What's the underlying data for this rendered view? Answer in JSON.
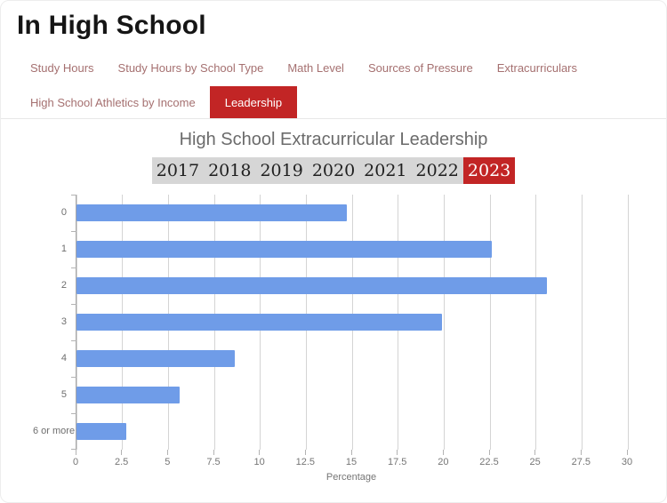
{
  "header": {
    "title": "In High School"
  },
  "tabs": {
    "row1": [
      {
        "label": "Study Hours"
      },
      {
        "label": "Study Hours by School Type"
      },
      {
        "label": "Math Level"
      },
      {
        "label": "Sources of Pressure"
      },
      {
        "label": "Extracurriculars"
      }
    ],
    "row2": [
      {
        "label": "High School Athletics by Income"
      },
      {
        "label": "Leadership",
        "active": true
      }
    ]
  },
  "chart": {
    "title": "High School Extracurricular Leadership",
    "years": [
      {
        "label": "2017",
        "active": false
      },
      {
        "label": "2018",
        "active": false
      },
      {
        "label": "2019",
        "active": false
      },
      {
        "label": "2020",
        "active": false
      },
      {
        "label": "2021",
        "active": false
      },
      {
        "label": "2022",
        "active": false
      },
      {
        "label": "2023",
        "active": true
      }
    ]
  },
  "chart_data": {
    "type": "bar",
    "orientation": "horizontal",
    "title": "High School Extracurricular Leadership",
    "categories": [
      "0",
      "1",
      "2",
      "3",
      "4",
      "5",
      "6 or more"
    ],
    "values": [
      14.7,
      22.6,
      25.6,
      19.9,
      8.6,
      5.6,
      2.7
    ],
    "xlabel": "Percentage",
    "ylabel": "",
    "xlim": [
      0,
      30
    ],
    "xticks": [
      0,
      2.5,
      5,
      7.5,
      10,
      12.5,
      15,
      17.5,
      20,
      22.5,
      25,
      27.5,
      30
    ],
    "grid": true,
    "legend": "none",
    "bar_color": "#6f9ce8"
  },
  "colors": {
    "accent_red": "#c22525",
    "tab_text": "#a57070",
    "bar_blue": "#6f9ce8",
    "year_bar_bg": "#d6d6d6",
    "gridline": "#d4d4d4",
    "chart_title_gray": "#6b6b6b"
  }
}
